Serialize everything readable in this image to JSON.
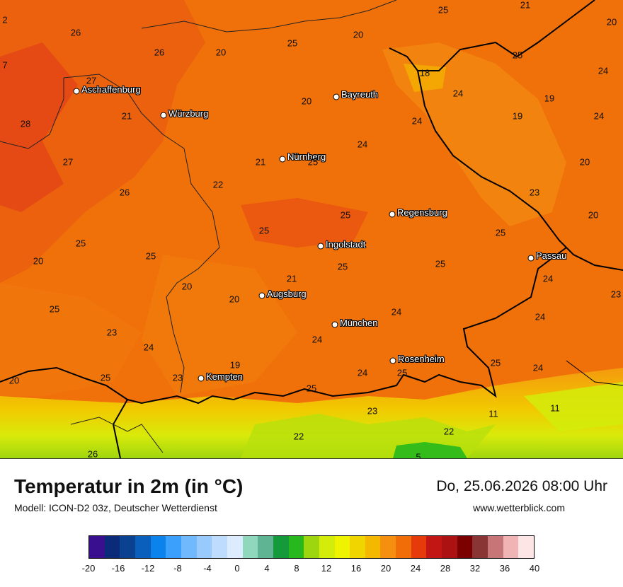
{
  "title": "Temperatur in 2m (in °C)",
  "model": "Modell: ICON-D2 03z, Deutscher Wetterdienst",
  "datetime": "Do, 25.06.2026 08:00 Uhr",
  "website": "www.wetterblick.com",
  "cities": [
    {
      "name": "Aschaffenburg"
    },
    {
      "name": "Würzburg"
    },
    {
      "name": "Bayreuth"
    },
    {
      "name": "Nürnberg"
    },
    {
      "name": "Regensburg"
    },
    {
      "name": "Ingolstadt"
    },
    {
      "name": "Passau"
    },
    {
      "name": "Augsburg"
    },
    {
      "name": "München"
    },
    {
      "name": "Rosenheim"
    },
    {
      "name": "Kempten"
    }
  ],
  "temperature_labels": [
    "2",
    "26",
    "26",
    "20",
    "25",
    "20",
    "25",
    "21",
    "20",
    "7",
    "27",
    "18",
    "24",
    "25",
    "24",
    "21",
    "20",
    "19",
    "24",
    "28",
    "19",
    "24",
    "27",
    "21",
    "25",
    "24",
    "20",
    "22",
    "26",
    "23",
    "25",
    "25",
    "20",
    "25",
    "25",
    "25",
    "21",
    "25",
    "20",
    "24",
    "25",
    "20",
    "23",
    "25",
    "24",
    "20",
    "24",
    "24",
    "23",
    "24",
    "20",
    "25",
    "19",
    "23",
    "24",
    "25",
    "25",
    "25",
    "24",
    "11",
    "11",
    "23",
    "22",
    "22",
    "26",
    "5"
  ],
  "colorbar": {
    "ticks": [
      "-20",
      "-16",
      "-12",
      "-8",
      "-4",
      "0",
      "4",
      "8",
      "12",
      "16",
      "20",
      "24",
      "28",
      "32",
      "36",
      "40"
    ],
    "colors": [
      "#3a0f8f",
      "#0a2a7a",
      "#0b4191",
      "#0a5fbd",
      "#0b82ec",
      "#3ba0fb",
      "#6fb9fc",
      "#98cafd",
      "#bedcfd",
      "#dcebfe",
      "#8fd8be",
      "#5fb593",
      "#149a3a",
      "#26b81d",
      "#9dd60e",
      "#d4ec0a",
      "#f0f300",
      "#f0d500",
      "#f4b800",
      "#f48f10",
      "#f06d08",
      "#e63a0a",
      "#c21614",
      "#ad1212",
      "#7d0000",
      "#8a3535",
      "#c67676",
      "#f0b4b4",
      "#fde5e5"
    ]
  }
}
